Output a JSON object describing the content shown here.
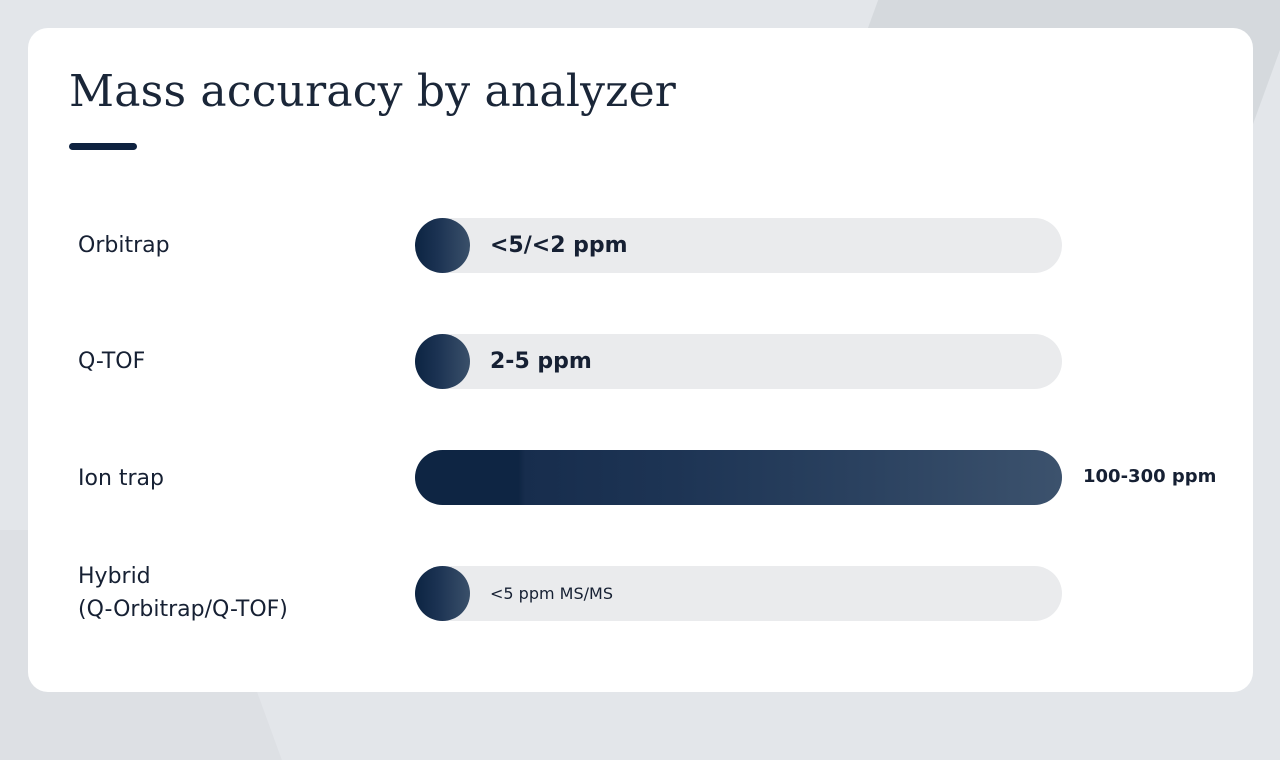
{
  "slide": {
    "title": "Mass accuracy by analyzer"
  },
  "colors": {
    "accent": "#0e2240",
    "bar_track": "#eaebed",
    "bar_fill_start": "#0c2442",
    "bar_fill_end": "#3c526d"
  },
  "chart_data": {
    "type": "bar",
    "orientation": "horizontal",
    "title": "Mass accuracy by analyzer",
    "categories": [
      "Orbitrap",
      "Q-TOF",
      "Ion trap",
      "Hybrid\n(Q-Orbitrap/Q-TOF)"
    ],
    "value_labels": [
      "<5/<2 ppm",
      "2-5 ppm",
      "100-300 ppm",
      "<5 ppm MS/MS"
    ],
    "fill_fraction": [
      0.085,
      0.085,
      1.0,
      0.085
    ],
    "xlabel": "",
    "ylabel": "",
    "grid": false,
    "legend": "none"
  }
}
